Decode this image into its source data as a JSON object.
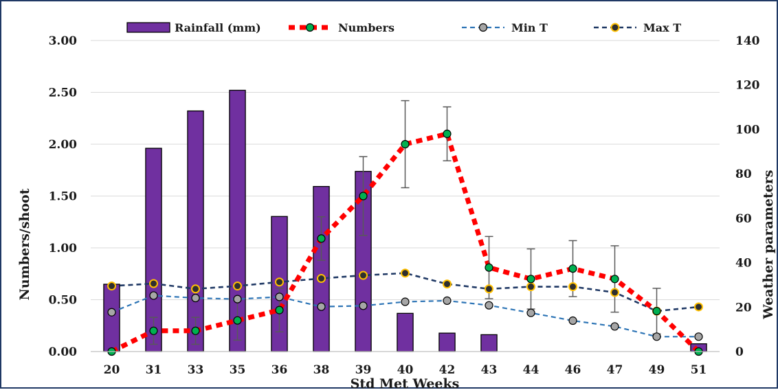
{
  "chart_data": {
    "type": "bar+line",
    "categories": [
      "20",
      "31",
      "33",
      "35",
      "36",
      "38",
      "39",
      "40",
      "42",
      "43",
      "44",
      "46",
      "47",
      "49",
      "51"
    ],
    "xlabel": "Std Met Weeks",
    "ylabel_left": "Numbers/shoot",
    "ylabel_right": "Weather parameters",
    "ylim_left": [
      0,
      3
    ],
    "ylim_right": [
      0,
      140
    ],
    "y_ticks_left": [
      "0.00",
      "0.50",
      "1.00",
      "1.50",
      "2.00",
      "2.50",
      "3.00"
    ],
    "y_ticks_right": [
      "0",
      "20",
      "40",
      "60",
      "80",
      "100",
      "120",
      "140"
    ],
    "grid": true,
    "legend_position": "top",
    "series": [
      {
        "name": "Rainfall (mm)",
        "type": "bar",
        "axis": "right",
        "color": "#7030a0",
        "values": [
          30.3,
          91.5,
          108.3,
          117.6,
          60.8,
          74.3,
          81.1,
          17.2,
          8.3,
          7.6,
          0,
          0,
          0,
          0,
          3.5
        ]
      },
      {
        "name": "Numbers",
        "type": "line",
        "axis": "left",
        "style": "dotted",
        "color": "#ff0000",
        "marker": "#00b050",
        "values": [
          0.0,
          0.2,
          0.2,
          0.3,
          0.4,
          1.09,
          1.5,
          2.0,
          2.1,
          0.81,
          0.7,
          0.8,
          0.7,
          0.39,
          0.0
        ],
        "errors": [
          0,
          0.13,
          0.13,
          0.19,
          0.21,
          0.21,
          0.38,
          0.42,
          0.26,
          0.3,
          0.29,
          0.27,
          0.32,
          0.22,
          0
        ]
      },
      {
        "name": "Min T",
        "type": "line",
        "axis": "right",
        "style": "dashed",
        "color": "#2e75b6",
        "marker": "#a6a6a6",
        "values": [
          17.7,
          25.2,
          24.1,
          23.6,
          24.6,
          20.2,
          20.6,
          22.4,
          22.9,
          20.8,
          17.4,
          13.9,
          11.3,
          6.7,
          6.7
        ]
      },
      {
        "name": "Max T",
        "type": "line",
        "axis": "right",
        "style": "dashed",
        "color": "#1f3864",
        "marker": "#ffc000",
        "values": [
          29.5,
          30.6,
          28.2,
          29.5,
          31.3,
          32.9,
          34.3,
          35.3,
          30.4,
          28.2,
          29.2,
          29.2,
          26.6,
          18.2,
          20.1
        ]
      }
    ]
  }
}
